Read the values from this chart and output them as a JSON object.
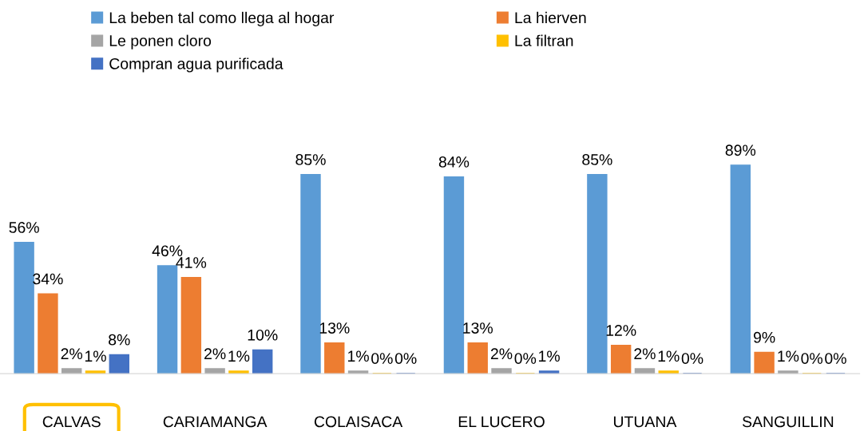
{
  "chart_data": {
    "type": "bar",
    "categories": [
      "CALVAS",
      "CARIAMANGA",
      "COLAISACA",
      "EL LUCERO",
      "UTUANA",
      "SANGUILLIN"
    ],
    "series": [
      {
        "name": "La beben tal como llega al hogar",
        "color": "#5b9bd5",
        "values": [
          56,
          46,
          85,
          84,
          85,
          89
        ],
        "value_labels": [
          "56%",
          "46%",
          "85%",
          "84%",
          "85%",
          "89%"
        ]
      },
      {
        "name": "La hierven",
        "color": "#ed7d31",
        "values": [
          34,
          41,
          13,
          13,
          12,
          9
        ],
        "value_labels": [
          "34%",
          "41%",
          "13%",
          "13%",
          "12%",
          "9%"
        ]
      },
      {
        "name": "Le ponen cloro",
        "color": "#a5a5a5",
        "values": [
          2,
          2,
          1,
          2,
          2,
          1
        ],
        "value_labels": [
          "2%",
          "2%",
          "1%",
          "2%",
          "2%",
          "1%"
        ]
      },
      {
        "name": "La filtran",
        "color": "#ffc000",
        "values": [
          1,
          1,
          0,
          0,
          1,
          0
        ],
        "value_labels": [
          "1%",
          "1%",
          "0%",
          "0%",
          "1%",
          "0%"
        ]
      },
      {
        "name": "Compran agua purificada",
        "color": "#4472c4",
        "values": [
          8,
          10,
          0,
          1,
          0,
          0
        ],
        "value_labels": [
          "8%",
          "10%",
          "0%",
          "1%",
          "0%",
          "0%"
        ]
      }
    ],
    "legend": "top",
    "grid": false,
    "tick_labels": "x"
  }
}
